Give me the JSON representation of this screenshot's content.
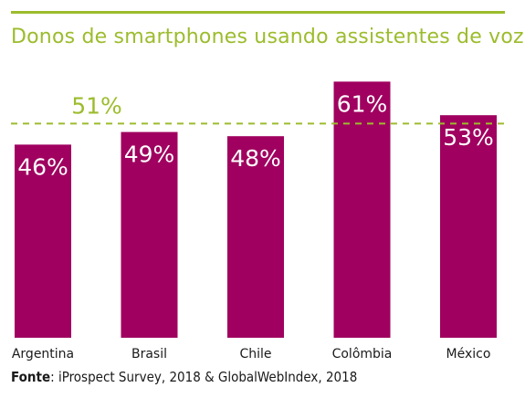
{
  "title": "Donos de smartphones usando assistentes de voz",
  "source": {
    "label": "Fonte",
    "text": ": iProspect Survey, 2018 & GlobalWebIndex, 2018"
  },
  "colors": {
    "bar": "#a0005f",
    "accent": "#9cbc2d",
    "bar_label": "#ffffff",
    "axis_text": "#1a1a1a"
  },
  "chart_data": {
    "type": "bar",
    "categories": [
      "Argentina",
      "Brasil",
      "Chile",
      "Colômbia",
      "México"
    ],
    "values": [
      46,
      49,
      48,
      61,
      53
    ],
    "value_labels": [
      "46%",
      "49%",
      "48%",
      "61%",
      "53%"
    ],
    "reference_line": {
      "value": 51,
      "label": "51%",
      "style": "dashed"
    },
    "title": "Donos de smartphones usando assistentes de voz",
    "xlabel": "",
    "ylabel": "",
    "grid": false,
    "legend": "none"
  }
}
